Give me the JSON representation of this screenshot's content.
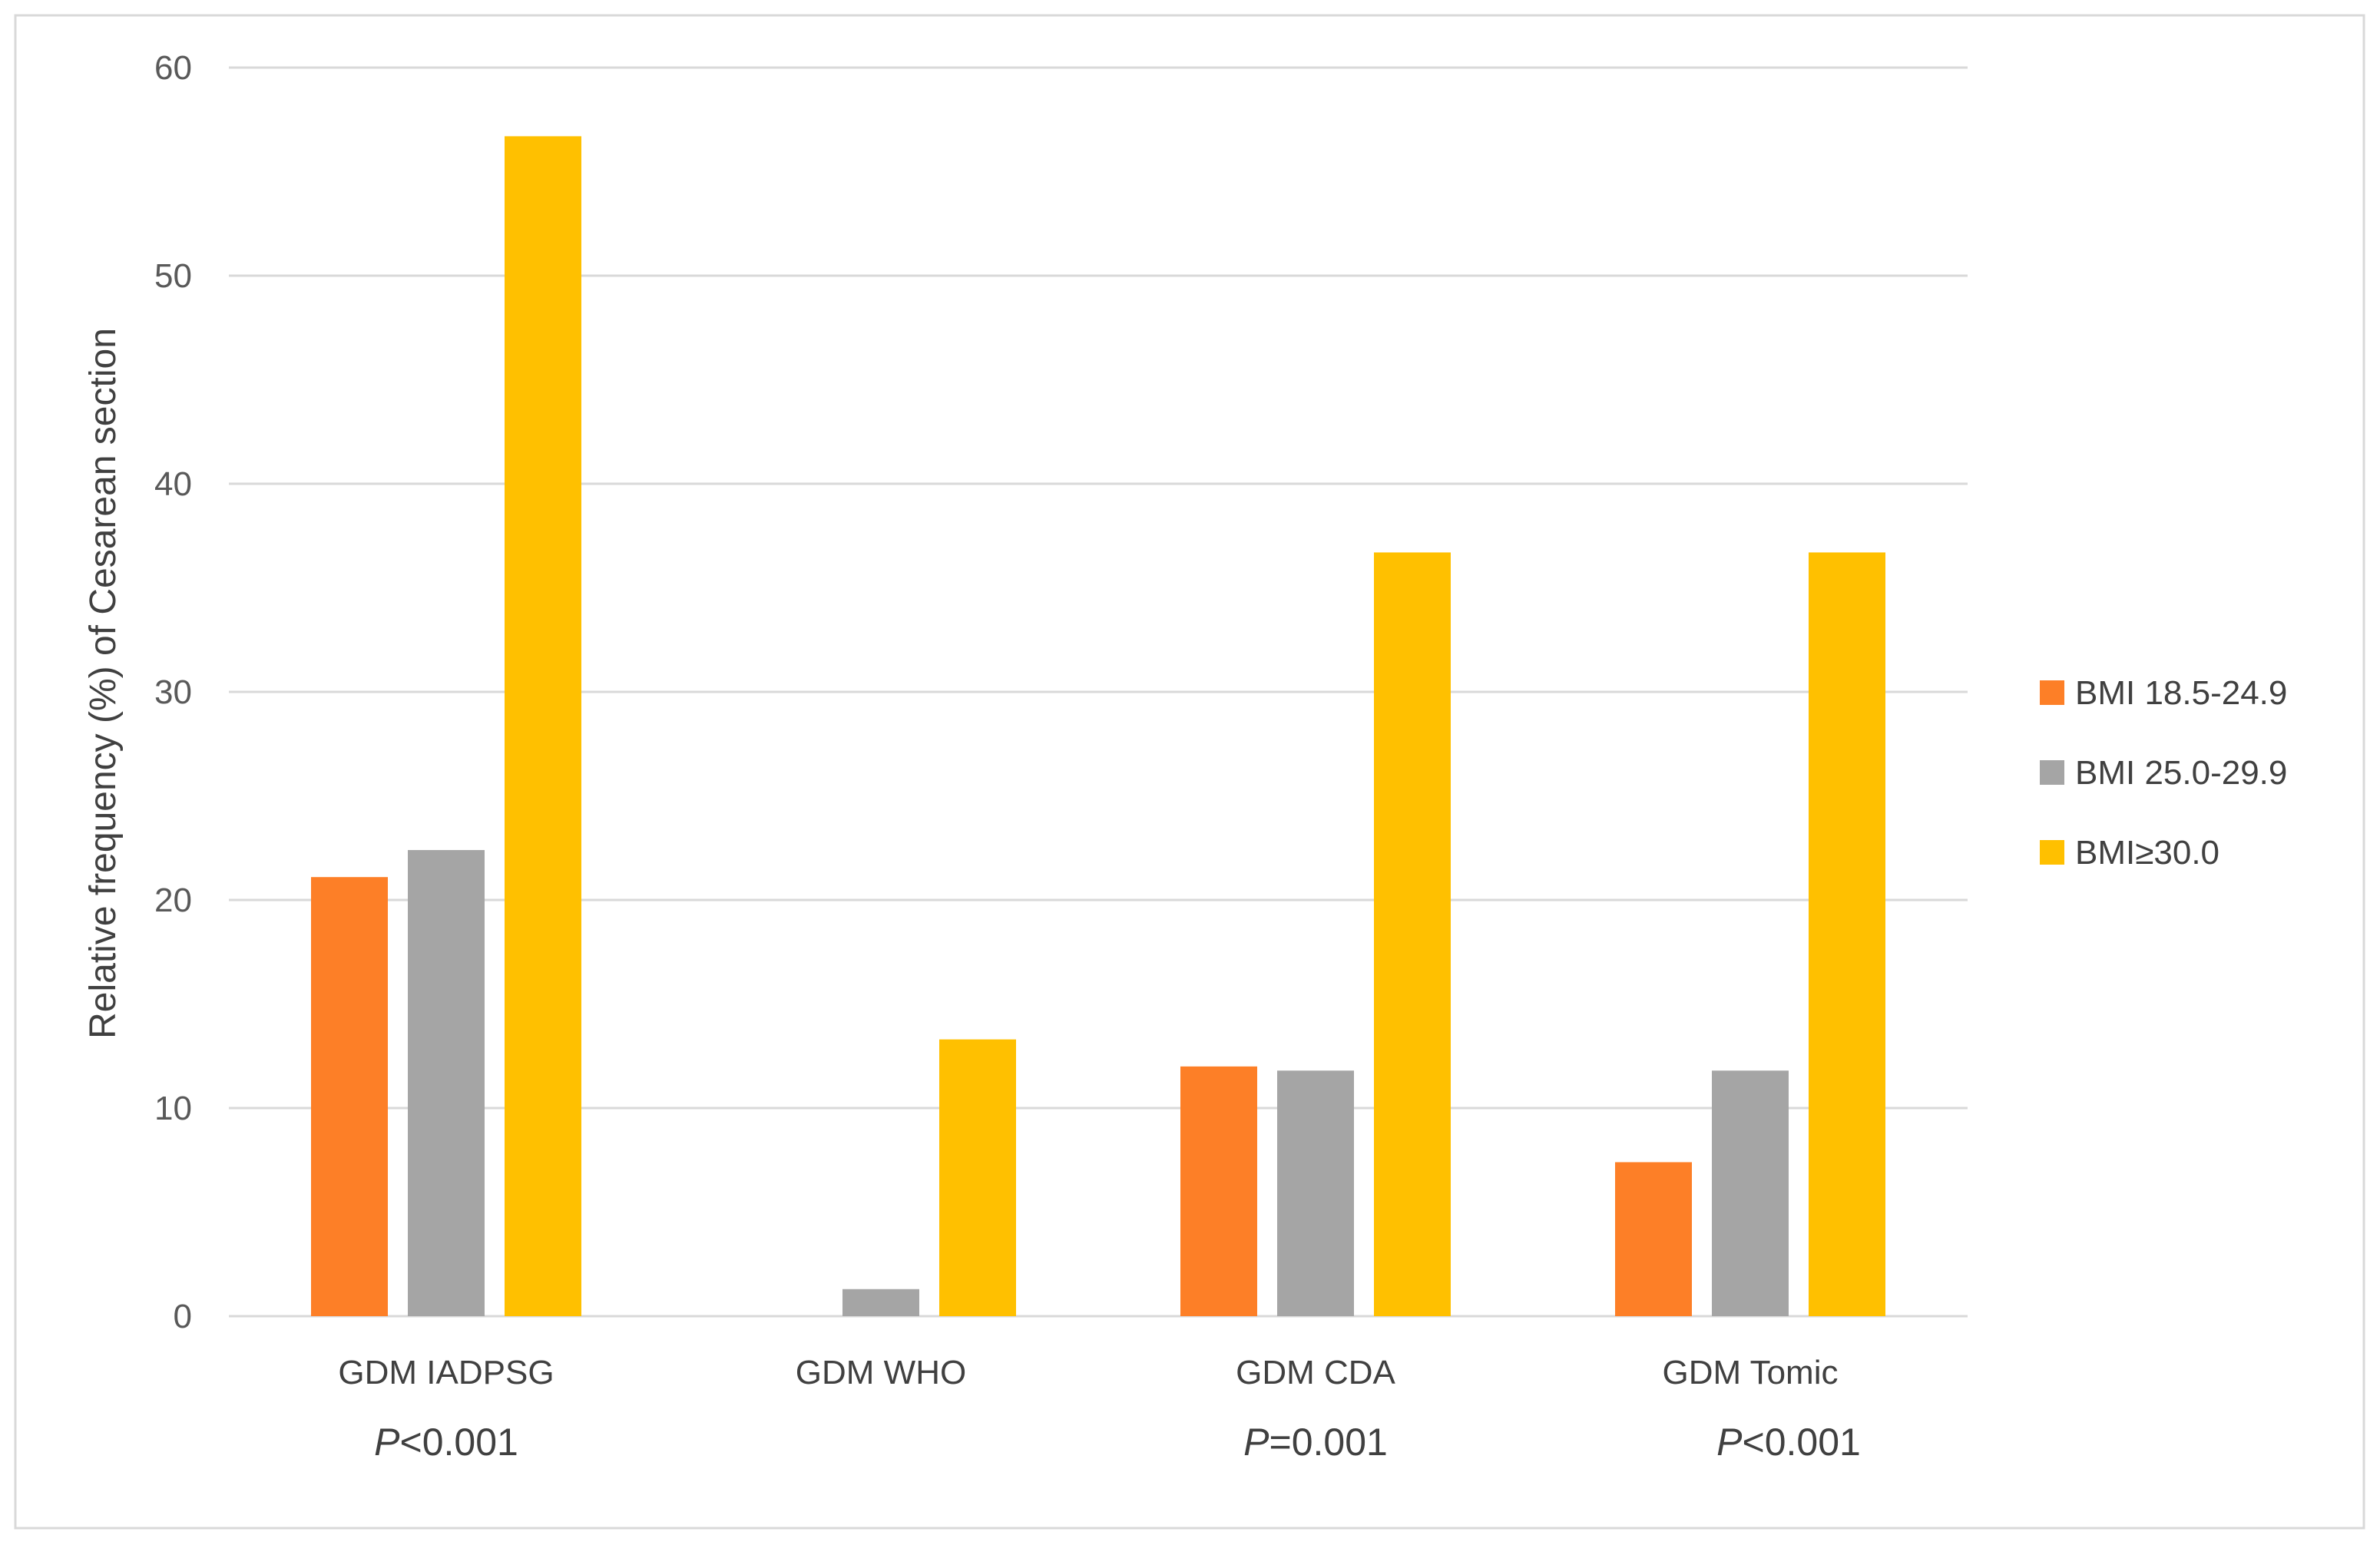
{
  "chart_data": {
    "type": "bar",
    "title": "",
    "xlabel": "",
    "ylabel": "Relative frequency (%) of Cesarean section",
    "ylim": [
      0,
      60
    ],
    "yticks": [
      0,
      10,
      20,
      30,
      40,
      50,
      60
    ],
    "grid": true,
    "legend_position": "right",
    "categories": [
      "GDM IADPSG",
      "GDM WHO",
      "GDM CDA",
      "GDM Tomic"
    ],
    "series": [
      {
        "name": "BMI 18.5-24.9",
        "color": "#fd7f27",
        "values": [
          21.1,
          0,
          12.0,
          7.4
        ]
      },
      {
        "name": "BMI 25.0-29.9",
        "color": "#a5a5a5",
        "values": [
          22.4,
          1.3,
          11.8,
          11.8
        ]
      },
      {
        "name": "BMI≥30.0",
        "color": "#ffc000",
        "values": [
          56.7,
          13.3,
          36.7,
          36.7
        ]
      }
    ],
    "annotations": [
      {
        "category": "GDM IADPSG",
        "p_symbol": "P",
        "p_rest": "<0.001"
      },
      {
        "category": "GDM CDA",
        "p_symbol": "P",
        "p_rest": "=0.001"
      },
      {
        "category": "GDM Tomic",
        "p_symbol": "P",
        "p_rest": "<0.001"
      }
    ]
  }
}
